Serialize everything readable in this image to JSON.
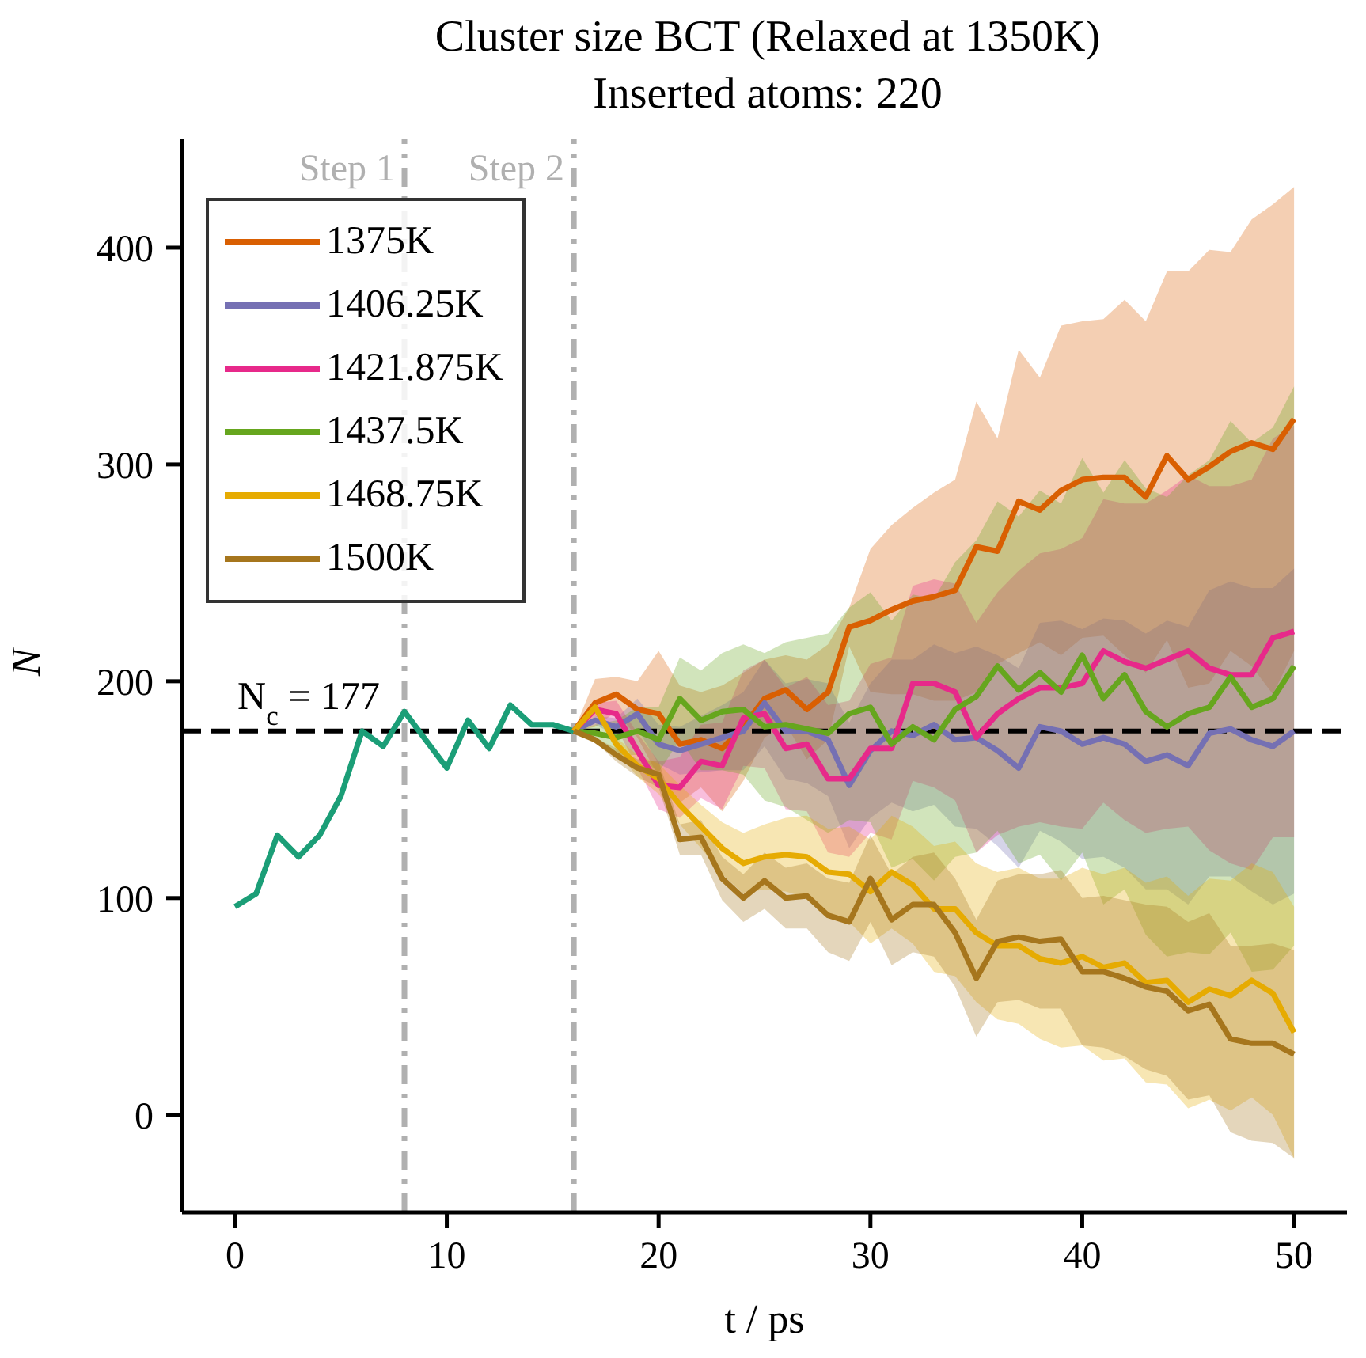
{
  "chart_data": {
    "type": "line",
    "title": "Cluster size BCT (Relaxed at 1350K)",
    "subtitle": "Inserted atoms: 220",
    "xlabel": "t / ps",
    "ylabel": "N",
    "xlim": [
      -2.5,
      52.5
    ],
    "xticks": [
      0,
      10,
      20,
      30,
      40,
      50
    ],
    "ylim": [
      -45,
      450
    ],
    "yticks": [
      0,
      100,
      200,
      300,
      400
    ],
    "legend": "top left",
    "ref_lines": [
      {
        "axis": "y",
        "value": 177,
        "label": "N$_{c}$ = 177",
        "color": "#000000",
        "line_style": "dashed"
      },
      {
        "axis": "x",
        "value": 8,
        "label": "Step 1",
        "color": "#b0b0b0",
        "line_style": "dashdot"
      },
      {
        "axis": "x",
        "value": 16,
        "label": "Step 2",
        "color": "#b0b0b0",
        "line_style": "dashdot"
      }
    ],
    "series": [
      {
        "color": "#1b9e77",
        "x": [
          0,
          1,
          2,
          3,
          4,
          5,
          6,
          7,
          8,
          9,
          10,
          11,
          12,
          13,
          14,
          15,
          16
        ],
        "values": [
          96,
          102,
          129,
          119,
          129,
          147,
          177,
          170,
          186,
          173,
          160,
          182,
          169,
          189,
          180,
          180,
          177
        ]
      },
      {
        "name": "1375K",
        "color": "#d95f02",
        "x": [
          16,
          17,
          18,
          19,
          20,
          21,
          22,
          23,
          24,
          25,
          26,
          27,
          28,
          29,
          30,
          31,
          32,
          33,
          34,
          35,
          36,
          37,
          38,
          39,
          40,
          41,
          42,
          43,
          44,
          45,
          46,
          47,
          48,
          49,
          50
        ],
        "values": [
          177,
          190,
          194,
          187,
          185,
          171,
          173,
          169,
          179,
          192,
          196,
          187,
          195,
          225,
          228,
          233,
          237,
          239,
          242,
          262,
          260,
          283,
          279,
          288,
          293,
          294,
          294,
          285,
          304,
          293,
          299,
          306,
          310,
          307,
          321
        ],
        "lower": [
          177,
          179,
          186,
          174,
          156,
          144,
          151,
          140,
          154,
          174,
          180,
          164,
          173,
          216,
          195,
          194,
          194,
          191,
          191,
          195,
          208,
          213,
          218,
          212,
          220,
          221,
          212,
          204,
          219,
          197,
          199,
          214,
          207,
          194,
          214
        ],
        "upper": [
          177,
          201,
          202,
          200,
          214,
          198,
          195,
          198,
          204,
          210,
          212,
          210,
          217,
          234,
          261,
          272,
          280,
          287,
          293,
          329,
          312,
          353,
          340,
          364,
          366,
          367,
          376,
          366,
          389,
          389,
          399,
          398,
          413,
          420,
          428
        ]
      },
      {
        "name": "1406.25K",
        "color": "#7570b3",
        "x": [
          16,
          17,
          18,
          19,
          20,
          21,
          22,
          23,
          24,
          25,
          26,
          27,
          28,
          29,
          30,
          31,
          32,
          33,
          34,
          35,
          36,
          37,
          38,
          39,
          40,
          41,
          42,
          43,
          44,
          45,
          46,
          47,
          48,
          49,
          50
        ],
        "values": [
          177,
          182,
          179,
          185,
          171,
          168,
          171,
          174,
          177,
          190,
          177,
          177,
          173,
          152,
          168,
          177,
          175,
          180,
          173,
          174,
          168,
          160,
          179,
          177,
          171,
          174,
          171,
          163,
          166,
          161,
          176,
          178,
          173,
          170,
          177
        ],
        "lower": [
          177,
          180,
          175,
          178,
          162,
          157,
          158,
          159,
          159,
          170,
          155,
          153,
          147,
          123,
          137,
          144,
          140,
          143,
          133,
          132,
          124,
          114,
          131,
          126,
          118,
          119,
          114,
          104,
          104,
          97,
          110,
          110,
          103,
          97,
          102
        ],
        "upper": [
          177,
          184,
          183,
          192,
          180,
          179,
          184,
          189,
          195,
          210,
          199,
          201,
          199,
          181,
          199,
          210,
          210,
          217,
          213,
          216,
          212,
          206,
          227,
          228,
          224,
          229,
          228,
          222,
          228,
          225,
          242,
          246,
          243,
          243,
          252
        ]
      },
      {
        "name": "1421.875K",
        "color": "#e7298a",
        "x": [
          16,
          17,
          18,
          19,
          20,
          21,
          22,
          23,
          24,
          25,
          26,
          27,
          28,
          29,
          30,
          31,
          32,
          33,
          34,
          35,
          36,
          37,
          38,
          39,
          40,
          41,
          42,
          43,
          44,
          45,
          46,
          47,
          48,
          49,
          50
        ],
        "values": [
          177,
          187,
          185,
          168,
          152,
          151,
          163,
          161,
          183,
          185,
          169,
          171,
          155,
          155,
          169,
          169,
          199,
          199,
          195,
          174,
          185,
          192,
          197,
          197,
          199,
          214,
          209,
          206,
          210,
          214,
          206,
          203,
          203,
          220,
          223
        ],
        "lower": [
          177,
          184,
          179,
          160,
          141,
          137,
          146,
          141,
          161,
          160,
          141,
          140,
          121,
          119,
          130,
          127,
          154,
          151,
          145,
          121,
          129,
          133,
          135,
          133,
          132,
          144,
          136,
          130,
          132,
          133,
          122,
          116,
          113,
          128,
          128
        ],
        "upper": [
          177,
          190,
          191,
          176,
          163,
          165,
          180,
          181,
          205,
          210,
          197,
          202,
          189,
          191,
          208,
          211,
          244,
          247,
          245,
          227,
          241,
          251,
          259,
          261,
          266,
          284,
          282,
          282,
          288,
          295,
          290,
          290,
          293,
          312,
          318
        ]
      },
      {
        "name": "1437.5K",
        "color": "#66a61e",
        "x": [
          16,
          17,
          18,
          19,
          20,
          21,
          22,
          23,
          24,
          25,
          26,
          27,
          28,
          29,
          30,
          31,
          32,
          33,
          34,
          35,
          36,
          37,
          38,
          39,
          40,
          41,
          42,
          43,
          44,
          45,
          46,
          47,
          48,
          49,
          50
        ],
        "values": [
          177,
          176,
          174,
          177,
          173,
          192,
          182,
          186,
          187,
          179,
          180,
          178,
          176,
          185,
          188,
          171,
          179,
          173,
          187,
          193,
          207,
          196,
          204,
          195,
          212,
          192,
          203,
          186,
          179,
          185,
          188,
          202,
          188,
          192,
          207
        ],
        "lower": [
          177,
          172,
          166,
          166,
          158,
          173,
          159,
          159,
          157,
          145,
          142,
          136,
          130,
          136,
          135,
          114,
          118,
          108,
          119,
          121,
          131,
          116,
          120,
          108,
          121,
          97,
          104,
          83,
          73,
          75,
          74,
          84,
          66,
          67,
          78
        ],
        "upper": [
          177,
          180,
          182,
          188,
          188,
          211,
          205,
          213,
          217,
          213,
          218,
          220,
          222,
          234,
          241,
          228,
          240,
          238,
          255,
          265,
          283,
          276,
          288,
          282,
          303,
          287,
          302,
          289,
          285,
          295,
          302,
          320,
          310,
          317,
          336
        ]
      },
      {
        "name": "1468.75K",
        "color": "#e6ab02",
        "x": [
          16,
          17,
          18,
          19,
          20,
          21,
          22,
          23,
          24,
          25,
          26,
          27,
          28,
          29,
          30,
          31,
          32,
          33,
          34,
          35,
          36,
          37,
          38,
          39,
          40,
          41,
          42,
          43,
          44,
          45,
          46,
          47,
          48,
          49,
          50
        ],
        "values": [
          177,
          188,
          171,
          161,
          155,
          143,
          133,
          123,
          116,
          119,
          120,
          119,
          112,
          111,
          103,
          112,
          106,
          95,
          95,
          84,
          78,
          78,
          72,
          70,
          73,
          68,
          70,
          61,
          62,
          52,
          58,
          55,
          62,
          56,
          38
        ],
        "lower": [
          177,
          186,
          168,
          156,
          148,
          134,
          123,
          111,
          102,
          104,
          103,
          100,
          92,
          89,
          79,
          86,
          79,
          66,
          64,
          52,
          44,
          42,
          35,
          31,
          32,
          25,
          26,
          15,
          14,
          3,
          7,
          2,
          8,
          0,
          -20
        ],
        "upper": [
          177,
          190,
          174,
          166,
          162,
          152,
          143,
          135,
          130,
          134,
          137,
          138,
          132,
          133,
          127,
          138,
          133,
          124,
          126,
          116,
          112,
          114,
          109,
          109,
          114,
          111,
          114,
          107,
          110,
          101,
          109,
          108,
          116,
          112,
          96
        ]
      },
      {
        "name": "1500K",
        "color": "#a6761d",
        "x": [
          16,
          17,
          18,
          19,
          20,
          21,
          22,
          23,
          24,
          25,
          26,
          27,
          28,
          29,
          30,
          31,
          32,
          33,
          34,
          35,
          36,
          37,
          38,
          39,
          40,
          41,
          42,
          43,
          44,
          45,
          46,
          47,
          48,
          49,
          50
        ],
        "values": [
          177,
          173,
          166,
          160,
          157,
          127,
          128,
          109,
          100,
          108,
          100,
          101,
          92,
          89,
          109,
          90,
          97,
          97,
          84,
          63,
          80,
          82,
          80,
          81,
          66,
          66,
          63,
          59,
          57,
          48,
          51,
          35,
          33,
          33,
          28
        ],
        "lower": [
          177,
          172,
          163,
          156,
          151,
          120,
          120,
          99,
          89,
          95,
          86,
          86,
          75,
          71,
          89,
          69,
          75,
          73,
          59,
          36,
          52,
          53,
          49,
          49,
          32,
          31,
          27,
          21,
          18,
          7,
          9,
          -8,
          -12,
          -13,
          -20
        ],
        "upper": [
          177,
          174,
          169,
          164,
          163,
          134,
          136,
          119,
          111,
          121,
          114,
          116,
          109,
          107,
          129,
          111,
          119,
          121,
          109,
          90,
          108,
          111,
          111,
          113,
          100,
          101,
          99,
          97,
          96,
          89,
          93,
          78,
          78,
          79,
          76
        ]
      }
    ]
  }
}
